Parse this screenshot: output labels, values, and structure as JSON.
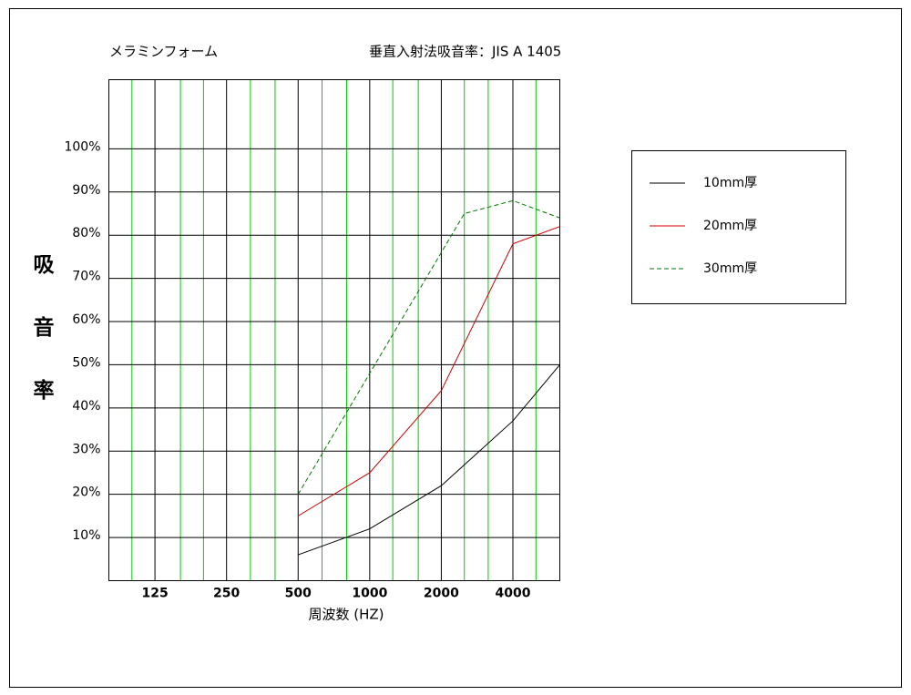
{
  "chart_data": {
    "type": "line",
    "subtitle": "メラミンフォーム",
    "title": "垂直入射法吸音率：JIS A 1405",
    "y_label": "吸音率",
    "x_label": "周波数 (HZ)",
    "log_x": true,
    "xlim": [
      80,
      6300
    ],
    "xticks": [
      125,
      250,
      500,
      1000,
      2000,
      4000
    ],
    "x_minor_ticks": [
      100,
      160,
      200,
      315,
      400,
      630,
      800,
      1250,
      1600,
      2500,
      3150,
      5000
    ],
    "ylim": [
      0,
      116
    ],
    "yticks": [
      {
        "value": 10,
        "label": "10%"
      },
      {
        "value": 20,
        "label": "20%"
      },
      {
        "value": 30,
        "label": "30%"
      },
      {
        "value": 40,
        "label": "40%"
      },
      {
        "value": 50,
        "label": "50%"
      },
      {
        "value": 60,
        "label": "60%"
      },
      {
        "value": 70,
        "label": "70%"
      },
      {
        "value": 80,
        "label": "80%"
      },
      {
        "value": 90,
        "label": "90%"
      },
      {
        "value": 100,
        "label": "100%"
      }
    ],
    "grid": true,
    "grid_color": "#000000",
    "minor_grid_color": "#00cc00",
    "legend": "right",
    "series": [
      {
        "name": "10mm厚",
        "color": "#000000",
        "dash": false,
        "x": [
          500,
          1000,
          2000,
          4000,
          6300
        ],
        "values": [
          6,
          12,
          22,
          37,
          50
        ]
      },
      {
        "name": "20mm厚",
        "color": "#cc0000",
        "dash": false,
        "x": [
          500,
          1000,
          2000,
          4000,
          6300
        ],
        "values": [
          15,
          25,
          44,
          78,
          82
        ]
      },
      {
        "name": "30mm厚",
        "color": "#007700",
        "dash": true,
        "x": [
          500,
          1000,
          2500,
          4000,
          6300
        ],
        "values": [
          20,
          48,
          85,
          88,
          84
        ]
      }
    ]
  }
}
